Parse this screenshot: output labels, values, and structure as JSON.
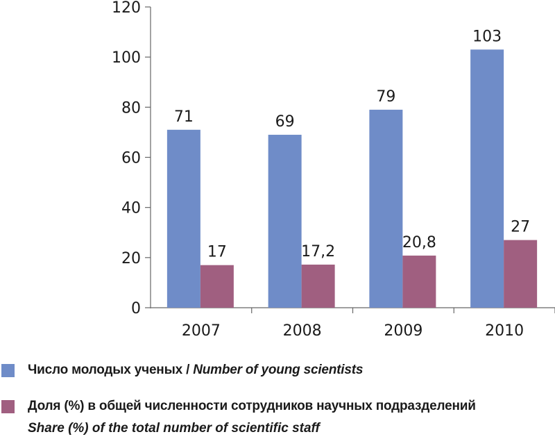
{
  "chart_data": {
    "type": "bar",
    "categories": [
      "2007",
      "2008",
      "2009",
      "2010"
    ],
    "series": [
      {
        "name": "Число молодых ученых / Number of young scientists",
        "values": [
          71,
          69,
          79,
          103
        ],
        "labels": [
          "71",
          "69",
          "79",
          "103"
        ],
        "color": "#6f8cc8"
      },
      {
        "name": "Доля (%) в общей численности сотрудников научных  подразделений Share (%) of the total number of scientific staff",
        "values": [
          17,
          17.2,
          20.8,
          27
        ],
        "labels": [
          "17",
          "17,2",
          "20,8",
          "27"
        ],
        "color": "#a05f80"
      }
    ],
    "ylim": [
      0,
      120
    ],
    "yticks": [
      "0",
      "20",
      "40",
      "60",
      "80",
      "100",
      "120"
    ],
    "grid": false,
    "legend": "bottom"
  },
  "legend": {
    "series1_ru": "Число молодых ученых",
    "series1_sep": " / ",
    "series1_en": "Number of young scientists",
    "series2_ru": "Доля (%) в общей численности сотрудников научных  подразделений",
    "series2_en": "Share (%) of the total number of scientific staff"
  }
}
